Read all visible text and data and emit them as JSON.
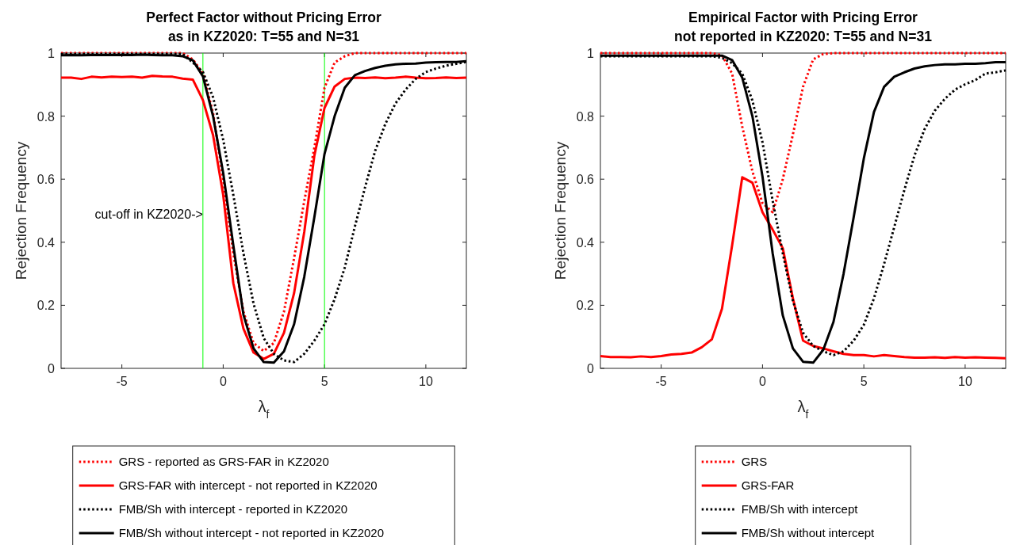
{
  "chart_data": [
    {
      "type": "line",
      "title": "Perfect Factor without Pricing Error\nas in KZ2020: T=55 and N=31",
      "xlabel": "λ$_{f}$",
      "ylabel": "Rejection Frequency",
      "x": [
        -8,
        -7.5,
        -7,
        -6.5,
        -6,
        -5.5,
        -5,
        -4.5,
        -4,
        -3.5,
        -3,
        -2.5,
        -2,
        -1.5,
        -1,
        -0.5,
        0,
        0.5,
        1,
        1.5,
        2,
        2.5,
        3,
        3.5,
        4,
        4.5,
        5,
        5.5,
        6,
        6.5,
        7,
        7.5,
        8,
        8.5,
        9,
        9.5,
        10,
        10.5,
        11,
        11.5,
        12
      ],
      "series": [
        {
          "name": "GRS - reported as GRS-FAR in KZ2020",
          "color": "#ff0000",
          "line_style": "dotted",
          "values": [
            1,
            1,
            1,
            1,
            1,
            1,
            1,
            1,
            1,
            1,
            1,
            1,
            1,
            0.98,
            0.935,
            0.81,
            0.6,
            0.365,
            0.18,
            0.08,
            0.055,
            0.08,
            0.18,
            0.35,
            0.53,
            0.7,
            0.89,
            0.97,
            0.99,
            1,
            1,
            1,
            1,
            1,
            1,
            1,
            1,
            1,
            1,
            1,
            1
          ]
        },
        {
          "name": "GRS-FAR with intercept - not reported in KZ2020",
          "color": "#ff0000",
          "line_style": "solid",
          "values": [
            0.922,
            0.922,
            0.918,
            0.925,
            0.923,
            0.925,
            0.924,
            0.925,
            0.922,
            0.928,
            0.926,
            0.925,
            0.919,
            0.916,
            0.851,
            0.74,
            0.55,
            0.27,
            0.126,
            0.05,
            0.03,
            0.046,
            0.113,
            0.239,
            0.432,
            0.675,
            0.826,
            0.894,
            0.918,
            0.922,
            0.921,
            0.923,
            0.92,
            0.922,
            0.925,
            0.922,
            0.92,
            0.921,
            0.923,
            0.921,
            0.922
          ]
        },
        {
          "name": "FMB/Sh with intercept - reported in KZ2020",
          "color": "#000000",
          "line_style": "dotted",
          "values": [
            0.997,
            0.997,
            0.997,
            0.997,
            0.997,
            0.997,
            0.997,
            0.997,
            0.997,
            0.997,
            0.997,
            0.997,
            0.997,
            0.97,
            0.94,
            0.86,
            0.725,
            0.55,
            0.365,
            0.205,
            0.096,
            0.046,
            0.025,
            0.02,
            0.046,
            0.088,
            0.14,
            0.22,
            0.32,
            0.45,
            0.574,
            0.69,
            0.775,
            0.84,
            0.884,
            0.918,
            0.94,
            0.951,
            0.96,
            0.966,
            0.972
          ]
        },
        {
          "name": "FMB/Sh without intercept - not reported in KZ2020",
          "color": "#000000",
          "line_style": "solid",
          "values": [
            0.993,
            0.994,
            0.993,
            0.994,
            0.994,
            0.994,
            0.994,
            0.994,
            0.995,
            0.994,
            0.993,
            0.993,
            0.99,
            0.977,
            0.926,
            0.8,
            0.62,
            0.39,
            0.17,
            0.063,
            0.02,
            0.018,
            0.054,
            0.14,
            0.29,
            0.48,
            0.68,
            0.8,
            0.89,
            0.93,
            0.943,
            0.953,
            0.96,
            0.964,
            0.966,
            0.967,
            0.97,
            0.971,
            0.972,
            0.972,
            0.974
          ]
        }
      ],
      "xlim": [
        -8,
        12
      ],
      "xticks": [
        -5,
        0,
        5,
        10
      ],
      "ylim": [
        0,
        1
      ],
      "yticks": [
        0,
        0.2,
        0.4,
        0.6,
        0.8,
        1
      ],
      "ref_lines": [
        {
          "axis": "x",
          "value": -1,
          "color": "#00ff00"
        },
        {
          "axis": "x",
          "value": 5,
          "color": "#00ff00"
        }
      ],
      "annotations": [
        {
          "text": "cut-off in KZ2020->",
          "x": -1,
          "y": 0.49
        }
      ],
      "legend": "bottom",
      "grid": false
    },
    {
      "type": "line",
      "title": "Empirical Factor with Pricing Error\nnot reported in KZ2020: T=55 and N=31",
      "xlabel": "λ$_{f}$",
      "ylabel": "Rejection Frequency",
      "x": [
        -8,
        -7.5,
        -7,
        -6.5,
        -6,
        -5.5,
        -5,
        -4.5,
        -4,
        -3.5,
        -3,
        -2.5,
        -2,
        -1.5,
        -1,
        -0.5,
        0,
        0.5,
        1,
        1.5,
        2,
        2.5,
        3,
        3.5,
        4,
        4.5,
        5,
        5.5,
        6,
        6.5,
        7,
        7.5,
        8,
        8.5,
        9,
        9.5,
        10,
        10.5,
        11,
        11.5,
        12
      ],
      "series": [
        {
          "name": "GRS",
          "color": "#ff0000",
          "line_style": "dotted",
          "values": [
            1,
            1,
            1,
            1,
            1,
            1,
            1,
            1,
            1,
            1,
            1,
            1,
            0.993,
            0.935,
            0.767,
            0.625,
            0.524,
            0.495,
            0.6,
            0.742,
            0.893,
            0.98,
            0.997,
            1,
            1,
            1,
            1,
            1,
            1,
            1,
            1,
            1,
            1,
            1,
            1,
            1,
            1,
            1,
            1,
            1,
            1
          ]
        },
        {
          "name": "GRS-FAR",
          "color": "#ff0000",
          "line_style": "solid",
          "values": [
            0.039,
            0.036,
            0.036,
            0.035,
            0.038,
            0.036,
            0.039,
            0.044,
            0.046,
            0.05,
            0.067,
            0.092,
            0.189,
            0.39,
            0.606,
            0.589,
            0.495,
            0.44,
            0.381,
            0.222,
            0.088,
            0.071,
            0.063,
            0.054,
            0.046,
            0.042,
            0.042,
            0.038,
            0.042,
            0.039,
            0.036,
            0.034,
            0.034,
            0.035,
            0.033,
            0.036,
            0.034,
            0.035,
            0.034,
            0.033,
            0.032
          ]
        },
        {
          "name": "FMB/Sh with intercept",
          "color": "#000000",
          "line_style": "dotted",
          "values": [
            0.99,
            0.99,
            0.99,
            0.99,
            0.99,
            0.99,
            0.99,
            0.99,
            0.99,
            0.99,
            0.99,
            0.99,
            0.985,
            0.968,
            0.935,
            0.85,
            0.717,
            0.532,
            0.365,
            0.214,
            0.113,
            0.071,
            0.054,
            0.042,
            0.054,
            0.088,
            0.138,
            0.222,
            0.331,
            0.448,
            0.566,
            0.675,
            0.759,
            0.817,
            0.855,
            0.884,
            0.901,
            0.914,
            0.935,
            0.939,
            0.945
          ]
        },
        {
          "name": "FMB/Sh without intercept",
          "color": "#000000",
          "line_style": "solid",
          "values": [
            0.992,
            0.992,
            0.992,
            0.992,
            0.992,
            0.992,
            0.992,
            0.992,
            0.992,
            0.992,
            0.992,
            0.992,
            0.992,
            0.978,
            0.922,
            0.8,
            0.608,
            0.365,
            0.168,
            0.063,
            0.021,
            0.018,
            0.059,
            0.147,
            0.3,
            0.48,
            0.666,
            0.813,
            0.893,
            0.925,
            0.939,
            0.951,
            0.958,
            0.962,
            0.964,
            0.964,
            0.966,
            0.966,
            0.968,
            0.971,
            0.971
          ]
        }
      ],
      "xlim": [
        -8,
        12
      ],
      "xticks": [
        -5,
        0,
        5,
        10
      ],
      "ylim": [
        0,
        1
      ],
      "yticks": [
        0,
        0.2,
        0.4,
        0.6,
        0.8,
        1
      ],
      "legend": "bottom",
      "grid": false
    }
  ]
}
